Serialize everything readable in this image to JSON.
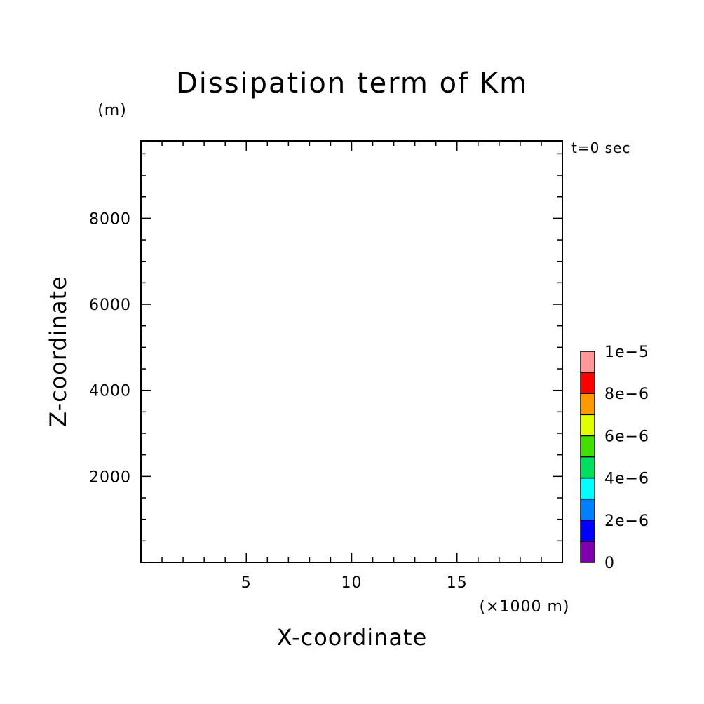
{
  "chart_data": {
    "type": "heatmap",
    "title": "Dissipation term of Km",
    "xlabel": "X-coordinate",
    "ylabel": "Z-coordinate",
    "x_unit": "(×1000 m)",
    "y_unit": "(m)",
    "time_label": "t=0 sec",
    "xlim": [
      0,
      20
    ],
    "ylim": [
      0,
      9800
    ],
    "x_major_ticks": [
      5,
      10,
      15
    ],
    "x_tick_labels": [
      "5",
      "10",
      "15"
    ],
    "x_minor_step": 1,
    "y_major_ticks": [
      2000,
      4000,
      6000,
      8000
    ],
    "y_tick_labels": [
      "2000",
      "4000",
      "6000",
      "8000"
    ],
    "y_minor_step": 500,
    "grid": false,
    "data": [],
    "colorbar": {
      "min": 0,
      "max": 1e-05,
      "levels": [
        0,
        1e-06,
        2e-06,
        3e-06,
        4e-06,
        5e-06,
        6e-06,
        7e-06,
        8e-06,
        9e-06,
        1e-05
      ],
      "colors": [
        "#8000b0",
        "#0000ff",
        "#0080ff",
        "#00ffff",
        "#00e060",
        "#40e000",
        "#e0ff00",
        "#ff9900",
        "#ff0000",
        "#ff9999"
      ],
      "tick_values": [
        0,
        2e-06,
        4e-06,
        6e-06,
        8e-06,
        1e-05
      ],
      "tick_labels": [
        "0",
        "2e−6",
        "4e−6",
        "6e−6",
        "8e−6",
        "1e−5"
      ]
    }
  }
}
